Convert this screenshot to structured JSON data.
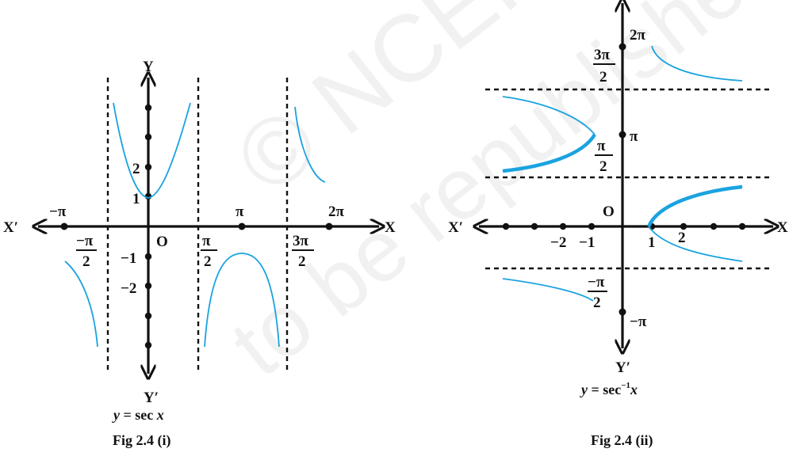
{
  "watermark": {
    "line1": "© NCERT",
    "line2": "to be republished"
  },
  "fig1": {
    "axis_x": "X",
    "axis_x_neg": "X′",
    "axis_y": "Y",
    "axis_y_neg": "Y′",
    "origin": "O",
    "tick_neg_pi": "−π",
    "tick_pi": "π",
    "tick_2pi": "2π",
    "tick_neg_pi2_num": "−π",
    "tick_neg_pi2_den": "2",
    "tick_pi2_num": "π",
    "tick_pi2_den": "2",
    "tick_3pi2_num": "3π",
    "tick_3pi2_den": "2",
    "y_1": "1",
    "y_2": "2",
    "y_neg1": "−1",
    "y_neg2": "−2",
    "equation_prefix": "y",
    "equation_body": " = sec ",
    "equation_var": "x",
    "caption": "Fig 2.4 (i)"
  },
  "fig2": {
    "axis_x": "X",
    "axis_x_neg": "X′",
    "axis_y_neg": "Y′",
    "origin": "O",
    "tick_1": "1",
    "tick_2": "2",
    "tick_neg1": "−1",
    "tick_neg2": "−2",
    "y_2pi": "2π",
    "y_pi": "π",
    "y_neg_pi": "−π",
    "y_3pi2_num": "3π",
    "y_3pi2_den": "2",
    "y_pi2_num": "π",
    "y_pi2_den": "2",
    "y_negpi2_num": "−π",
    "y_negpi2_den": "2",
    "equation_prefix": "y",
    "equation_body": " = sec",
    "equation_sup": "−1",
    "equation_var": "x",
    "caption": "Fig 2.4 (ii)"
  }
}
